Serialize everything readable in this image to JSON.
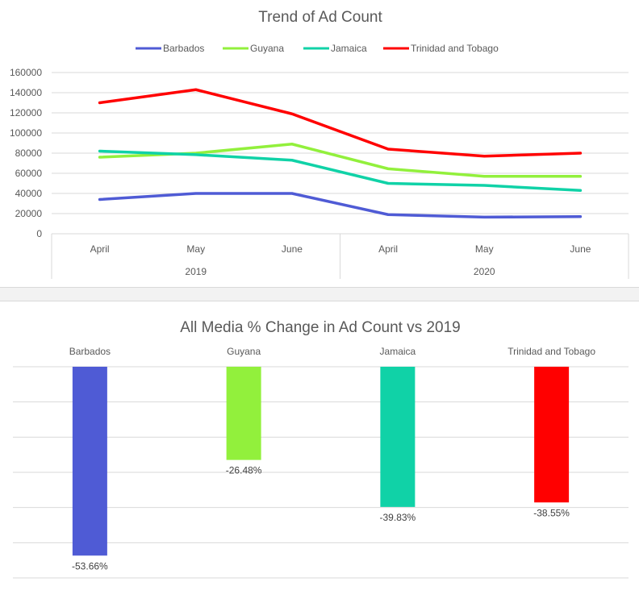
{
  "chart_data": [
    {
      "type": "line",
      "title": "Trend of Ad Count",
      "x": [
        "April",
        "May",
        "June",
        "April",
        "May",
        "June"
      ],
      "x_groups": [
        {
          "label": "2019",
          "span": 3
        },
        {
          "label": "2020",
          "span": 3
        }
      ],
      "ylim": [
        0,
        160000
      ],
      "yticks": [
        "0",
        "20000",
        "40000",
        "60000",
        "80000",
        "100000",
        "120000",
        "140000",
        "160000"
      ],
      "grid": true,
      "legend": "top",
      "series": [
        {
          "name": "Barbados",
          "color": "#4f5bd5",
          "values": [
            34000,
            40000,
            40000,
            19000,
            16500,
            17000
          ]
        },
        {
          "name": "Guyana",
          "color": "#92f03c",
          "values": [
            76000,
            80000,
            89000,
            64500,
            57000,
            57000
          ]
        },
        {
          "name": "Jamaica",
          "color": "#10d2a7",
          "values": [
            82000,
            78500,
            73000,
            50000,
            48000,
            43000
          ]
        },
        {
          "name": "Trinidad and Tobago",
          "color": "#ff0000",
          "values": [
            130000,
            143000,
            119000,
            84000,
            77000,
            80000
          ]
        }
      ]
    },
    {
      "type": "bar",
      "title": "All Media % Change in Ad Count vs 2019",
      "categories": [
        "Barbados",
        "Guyana",
        "Jamaica",
        "Trinidad and Tobago"
      ],
      "values": [
        -53.66,
        -26.48,
        -39.83,
        -38.55
      ],
      "labels": [
        "-53.66%",
        "-26.48%",
        "-39.83%",
        "-38.55%"
      ],
      "colors": [
        "#4f5bd5",
        "#92f03c",
        "#10d2a7",
        "#ff0000"
      ],
      "ylim": [
        -60,
        0
      ],
      "grid": true,
      "category_labels_position": "top"
    }
  ]
}
